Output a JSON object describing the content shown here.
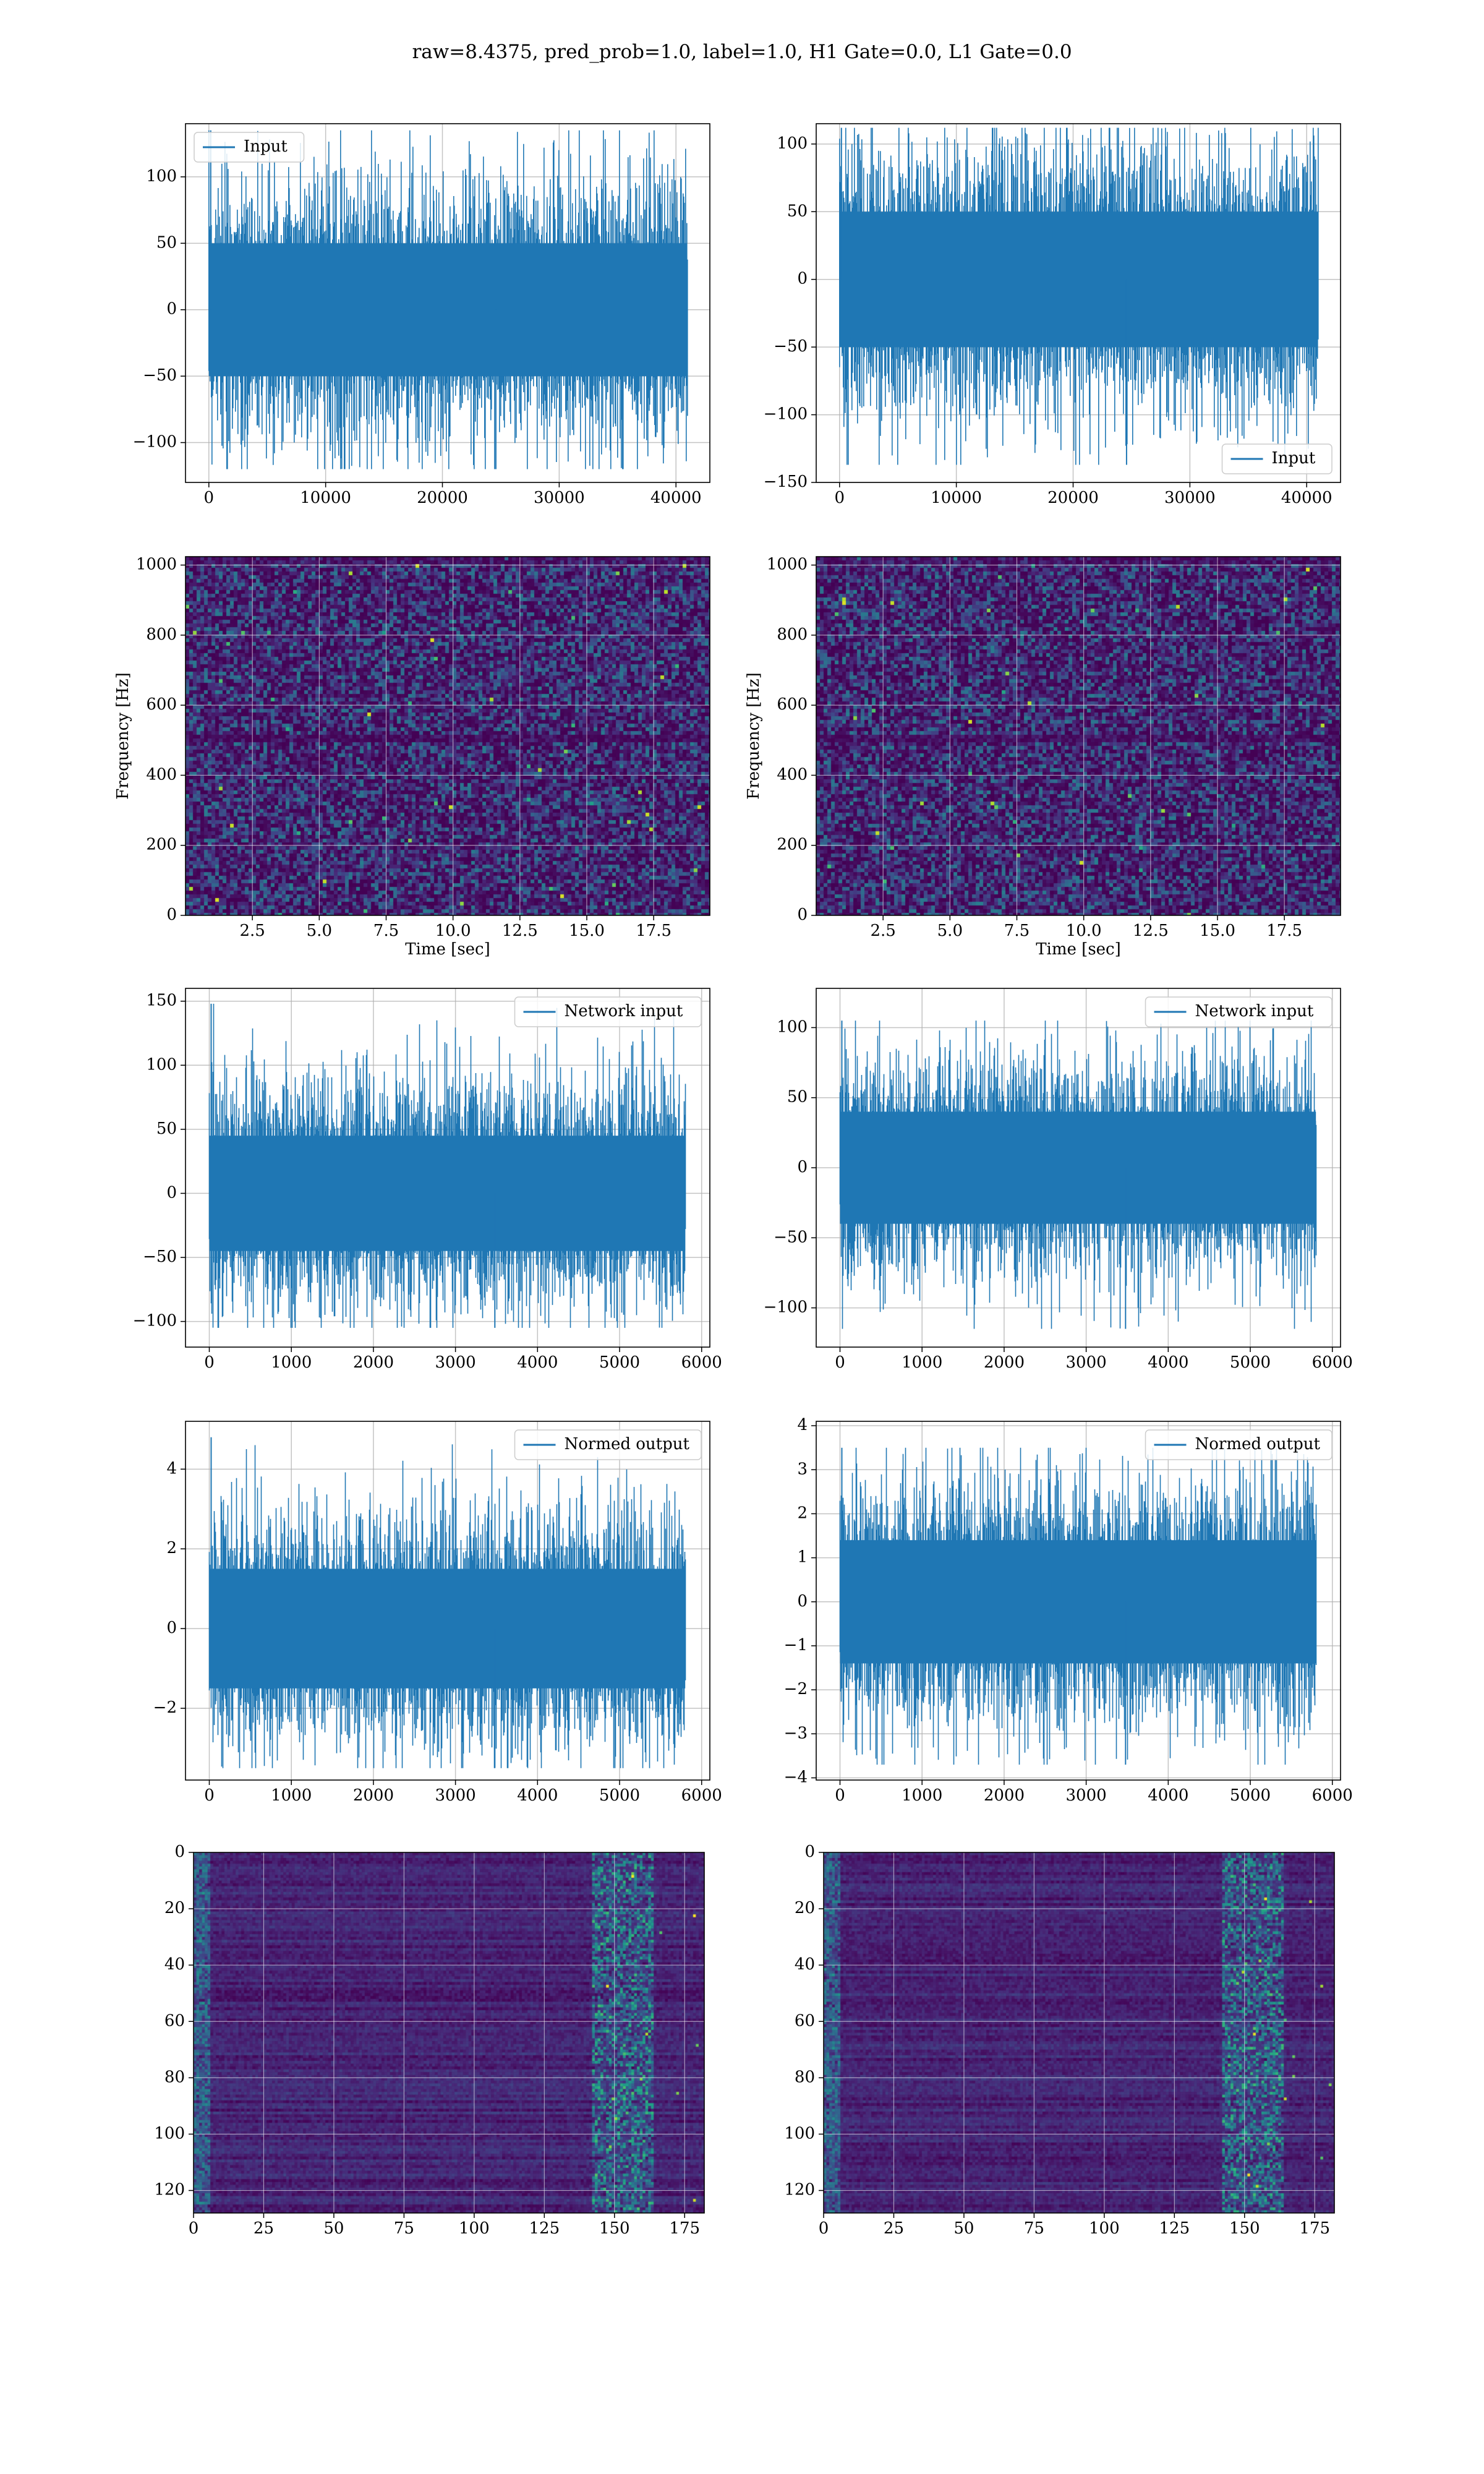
{
  "title": "raw=8.4375, pred_prob=1.0, label=1.0, H1 Gate=0.0, L1 Gate=0.0",
  "colors": {
    "series": "#1f77b4",
    "grid": "#b0b0b0",
    "axis": "#000000",
    "viridis_dark": "#440154"
  },
  "chart_data": [
    {
      "id": "input-h1",
      "type": "line",
      "legend": "Input",
      "legend_loc": "top-left",
      "xlim": [
        -2000,
        42900
      ],
      "ylim": [
        -130,
        140
      ],
      "xticks": [
        0,
        10000,
        20000,
        30000,
        40000
      ],
      "yticks": [
        -100,
        -50,
        0,
        50,
        100
      ],
      "x_range": [
        0,
        40960
      ],
      "band": [
        -50,
        50
      ],
      "peak": [
        -120,
        135
      ],
      "grid": true
    },
    {
      "id": "input-l1",
      "type": "line",
      "legend": "Input",
      "legend_loc": "bottom-right",
      "xlim": [
        -2000,
        42900
      ],
      "ylim": [
        -150,
        115
      ],
      "xticks": [
        0,
        10000,
        20000,
        30000,
        40000
      ],
      "yticks": [
        -150,
        -100,
        -50,
        0,
        50,
        100
      ],
      "x_range": [
        0,
        40960
      ],
      "band": [
        -50,
        50
      ],
      "peak": [
        -137,
        112
      ],
      "grid": true
    },
    {
      "id": "spectrogram-h1",
      "type": "heatmap",
      "xlabel": "Time [sec]",
      "ylabel": "Frequency [Hz]",
      "xlim": [
        0,
        19.6
      ],
      "ylim": [
        0,
        1024
      ],
      "xticks": [
        2.5,
        5.0,
        7.5,
        10.0,
        12.5,
        15.0,
        17.5
      ],
      "xtick_labels": [
        "2.5",
        "5.0",
        "7.5",
        "10.0",
        "12.5",
        "15.0",
        "17.5"
      ],
      "yticks": [
        0,
        200,
        400,
        600,
        800,
        1000
      ],
      "grid": true
    },
    {
      "id": "spectrogram-l1",
      "type": "heatmap",
      "xlabel": "Time [sec]",
      "ylabel": "Frequency [Hz]",
      "xlim": [
        0,
        19.6
      ],
      "ylim": [
        0,
        1024
      ],
      "xticks": [
        2.5,
        5.0,
        7.5,
        10.0,
        12.5,
        15.0,
        17.5
      ],
      "xtick_labels": [
        "2.5",
        "5.0",
        "7.5",
        "10.0",
        "12.5",
        "15.0",
        "17.5"
      ],
      "yticks": [
        0,
        200,
        400,
        600,
        800,
        1000
      ],
      "grid": true
    },
    {
      "id": "network-input-h1",
      "type": "line",
      "legend": "Network input",
      "legend_loc": "top-right",
      "xlim": [
        -290,
        6100
      ],
      "ylim": [
        -120,
        160
      ],
      "xticks": [
        0,
        1000,
        2000,
        3000,
        4000,
        5000,
        6000
      ],
      "yticks": [
        -100,
        -50,
        0,
        50,
        100,
        150
      ],
      "x_range": [
        0,
        5800
      ],
      "band": [
        -45,
        45
      ],
      "peak": [
        -105,
        148
      ],
      "grid": true
    },
    {
      "id": "network-input-l1",
      "type": "line",
      "legend": "Network input",
      "legend_loc": "top-right",
      "xlim": [
        -290,
        6100
      ],
      "ylim": [
        -128,
        128
      ],
      "xticks": [
        0,
        1000,
        2000,
        3000,
        4000,
        5000,
        6000
      ],
      "yticks": [
        -100,
        -50,
        0,
        50,
        100
      ],
      "x_range": [
        0,
        5800
      ],
      "band": [
        -40,
        40
      ],
      "peak": [
        -115,
        105
      ],
      "grid": true
    },
    {
      "id": "normed-output-h1",
      "type": "line",
      "legend": "Normed output",
      "legend_loc": "top-right",
      "xlim": [
        -290,
        6100
      ],
      "ylim": [
        -3.8,
        5.2
      ],
      "xticks": [
        0,
        1000,
        2000,
        3000,
        4000,
        5000,
        6000
      ],
      "yticks": [
        -2,
        0,
        2,
        4
      ],
      "x_range": [
        0,
        5800
      ],
      "band": [
        -1.5,
        1.5
      ],
      "peak": [
        -3.5,
        4.8
      ],
      "grid": true
    },
    {
      "id": "normed-output-l1",
      "type": "line",
      "legend": "Normed output",
      "legend_loc": "top-right",
      "xlim": [
        -290,
        6100
      ],
      "ylim": [
        -4.05,
        4.1
      ],
      "xticks": [
        0,
        1000,
        2000,
        3000,
        4000,
        5000,
        6000
      ],
      "yticks": [
        -4,
        -3,
        -2,
        -1,
        0,
        1,
        2,
        3,
        4
      ],
      "x_range": [
        0,
        5800
      ],
      "band": [
        -1.4,
        1.4
      ],
      "peak": [
        -3.7,
        3.5
      ],
      "grid": true
    },
    {
      "id": "feature-map-h1",
      "type": "heatmap",
      "xlim": [
        0,
        182
      ],
      "ylim": [
        128,
        0
      ],
      "xticks": [
        0,
        25,
        50,
        75,
        100,
        125,
        150,
        175
      ],
      "yticks": [
        0,
        20,
        40,
        60,
        80,
        100,
        120
      ],
      "grid": true
    },
    {
      "id": "feature-map-l1",
      "type": "heatmap",
      "xlim": [
        0,
        182
      ],
      "ylim": [
        128,
        0
      ],
      "xticks": [
        0,
        25,
        50,
        75,
        100,
        125,
        150,
        175
      ],
      "yticks": [
        0,
        20,
        40,
        60,
        80,
        100,
        120
      ],
      "grid": true
    }
  ]
}
